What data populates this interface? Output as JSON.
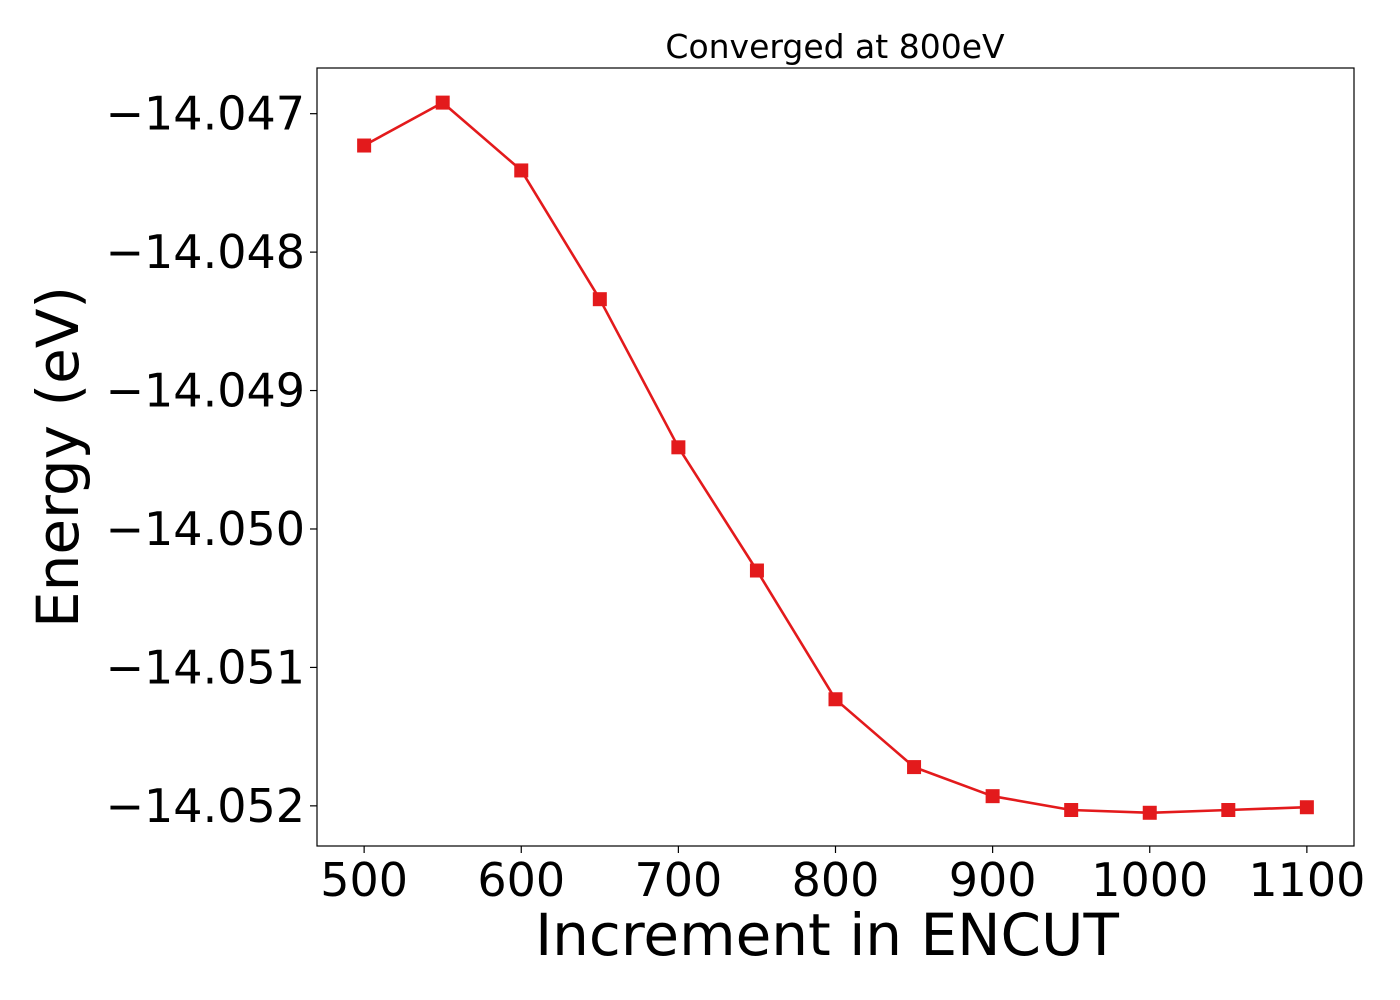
{
  "chart_data": {
    "type": "line",
    "title": "Converged at 800eV",
    "xlabel": "Increment in ENCUT",
    "ylabel": "Energy (eV)",
    "xlim": [
      470,
      1130
    ],
    "ylim": [
      -14.05229,
      -14.04667
    ],
    "x_ticks": [
      500,
      600,
      700,
      800,
      900,
      1000,
      1100
    ],
    "x_tick_labels": [
      "500",
      "600",
      "700",
      "800",
      "900",
      "1000",
      "1100"
    ],
    "y_ticks": [
      -14.047,
      -14.048,
      -14.049,
      -14.05,
      -14.051,
      -14.052
    ],
    "y_tick_labels": [
      "−14.047",
      "−14.048",
      "−14.049",
      "−14.050",
      "−14.051",
      "−14.052"
    ],
    "grid": false,
    "series": [
      {
        "color": "#e31a1c",
        "marker": "square",
        "x": [
          500,
          550,
          600,
          650,
          700,
          750,
          800,
          850,
          900,
          950,
          1000,
          1050,
          1100
        ],
        "y": [
          -14.04723,
          -14.04692,
          -14.04741,
          -14.04834,
          -14.04941,
          -14.0503,
          -14.05123,
          -14.05172,
          -14.05193,
          -14.05203,
          -14.05205,
          -14.05203,
          -14.05201
        ]
      }
    ]
  }
}
